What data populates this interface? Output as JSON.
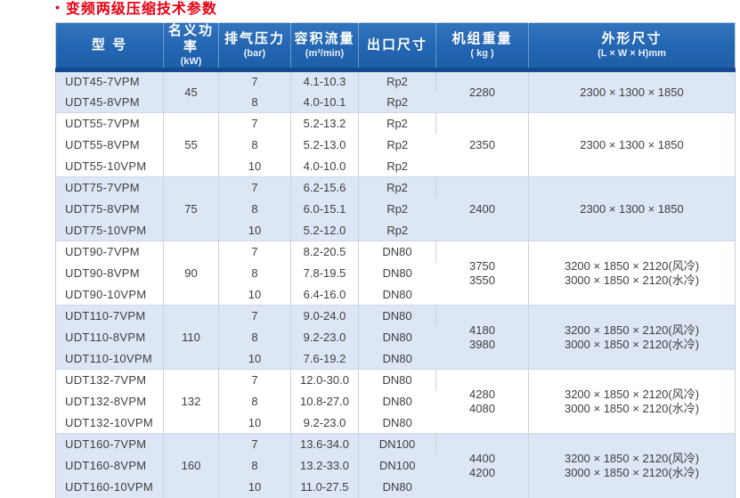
{
  "page": {
    "title": "变频两级压缩技术参数",
    "bullet": "•",
    "accent_red": "#e60012",
    "header_blue": "#2265b0",
    "band_blue": "#dde6f4"
  },
  "table": {
    "columns": [
      {
        "label": "型  号",
        "unit": ""
      },
      {
        "label": "名义功率",
        "unit": "(kW)"
      },
      {
        "label": "排气压力",
        "unit": "(bar)"
      },
      {
        "label": "容积流量",
        "unit": "(m³/min)"
      },
      {
        "label": "出口尺寸",
        "unit": ""
      },
      {
        "label": "机组重量",
        "unit": "( kg )"
      },
      {
        "label": "外形尺寸",
        "unit": "(L × W × H)mm"
      }
    ],
    "groups": [
      {
        "power": "45",
        "weight_lines": [
          "2280"
        ],
        "dimension_lines": [
          "2300 × 1300 × 1850"
        ],
        "rows": [
          {
            "model": "UDT45-7VPM",
            "pressure": "7",
            "flow": "4.1-10.3",
            "outlet": "Rp2"
          },
          {
            "model": "UDT45-8VPM",
            "pressure": "8",
            "flow": "4.0-10.1",
            "outlet": "Rp2"
          }
        ]
      },
      {
        "power": "55",
        "weight_lines": [
          "2350"
        ],
        "dimension_lines": [
          "2300 × 1300 × 1850"
        ],
        "rows": [
          {
            "model": "UDT55-7VPM",
            "pressure": "7",
            "flow": "5.2-13.2",
            "outlet": "Rp2"
          },
          {
            "model": "UDT55-8VPM",
            "pressure": "8",
            "flow": "5.2-13.0",
            "outlet": "Rp2"
          },
          {
            "model": "UDT55-10VPM",
            "pressure": "10",
            "flow": "4.0-10.0",
            "outlet": "Rp2"
          }
        ]
      },
      {
        "power": "75",
        "weight_lines": [
          "2400"
        ],
        "dimension_lines": [
          "2300 × 1300 × 1850"
        ],
        "rows": [
          {
            "model": "UDT75-7VPM",
            "pressure": "7",
            "flow": "6.2-15.6",
            "outlet": "Rp2"
          },
          {
            "model": "UDT75-8VPM",
            "pressure": "8",
            "flow": "6.0-15.1",
            "outlet": "Rp2"
          },
          {
            "model": "UDT75-10VPM",
            "pressure": "10",
            "flow": "5.2-12.0",
            "outlet": "Rp2"
          }
        ]
      },
      {
        "power": "90",
        "weight_lines": [
          "3750",
          "3550"
        ],
        "dimension_lines": [
          "3200 × 1850 × 2120(风冷)",
          "3000 × 1850 × 2120(水冷)"
        ],
        "rows": [
          {
            "model": "UDT90-7VPM",
            "pressure": "7",
            "flow": "8.2-20.5",
            "outlet": "DN80"
          },
          {
            "model": "UDT90-8VPM",
            "pressure": "8",
            "flow": "7.8-19.5",
            "outlet": "DN80"
          },
          {
            "model": "UDT90-10VPM",
            "pressure": "10",
            "flow": "6.4-16.0",
            "outlet": "DN80"
          }
        ]
      },
      {
        "power": "110",
        "weight_lines": [
          "4180",
          "3980"
        ],
        "dimension_lines": [
          "3200 × 1850 × 2120(风冷)",
          "3000 × 1850 × 2120(水冷)"
        ],
        "rows": [
          {
            "model": "UDT110-7VPM",
            "pressure": "7",
            "flow": "9.0-24.0",
            "outlet": "DN80"
          },
          {
            "model": "UDT110-8VPM",
            "pressure": "8",
            "flow": "9.2-23.0",
            "outlet": "DN80"
          },
          {
            "model": "UDT110-10VPM",
            "pressure": "10",
            "flow": "7.6-19.2",
            "outlet": "DN80"
          }
        ]
      },
      {
        "power": "132",
        "weight_lines": [
          "4280",
          "4080"
        ],
        "dimension_lines": [
          "3200 × 1850 × 2120(风冷)",
          "3000 × 1850 × 2120(水冷)"
        ],
        "rows": [
          {
            "model": "UDT132-7VPM",
            "pressure": "7",
            "flow": "12.0-30.0",
            "outlet": "DN80"
          },
          {
            "model": "UDT132-8VPM",
            "pressure": "8",
            "flow": "10.8-27.0",
            "outlet": "DN80"
          },
          {
            "model": "UDT132-10VPM",
            "pressure": "10",
            "flow": "9.2-23.0",
            "outlet": "DN80"
          }
        ]
      },
      {
        "power": "160",
        "weight_lines": [
          "4400",
          "4200"
        ],
        "dimension_lines": [
          "3200 × 1850 × 2120(风冷)",
          "3000 × 1850 × 2120(水冷)"
        ],
        "rows": [
          {
            "model": "UDT160-7VPM",
            "pressure": "7",
            "flow": "13.6-34.0",
            "outlet": "DN100"
          },
          {
            "model": "UDT160-8VPM",
            "pressure": "8",
            "flow": "13.2-33.0",
            "outlet": "DN100"
          },
          {
            "model": "UDT160-10VPM",
            "pressure": "10",
            "flow": "11.0-27.5",
            "outlet": "DN80"
          }
        ]
      }
    ]
  }
}
